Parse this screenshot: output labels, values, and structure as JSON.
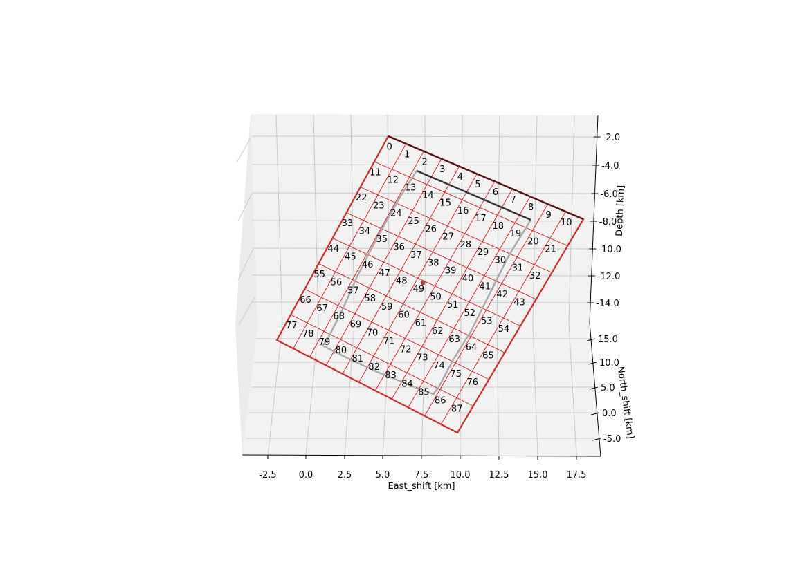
{
  "chart_data": {
    "type": "3d-fault-patch-grid",
    "axes": {
      "x": {
        "label": "East_shift [km]",
        "ticks": [
          "-2.5",
          "0.0",
          "2.5",
          "5.0",
          "7.5",
          "10.0",
          "12.5",
          "15.0",
          "17.5"
        ]
      },
      "y": {
        "label": "North_shift [km]",
        "ticks": [
          "-5.0",
          "0.0",
          "5.0",
          "10.0",
          "15.0"
        ]
      },
      "z": {
        "label": "Depth [km]",
        "ticks": [
          "-2.0",
          "-4.0",
          "-6.0",
          "-8.0",
          "-10.0",
          "-12.0",
          "-14.0"
        ]
      }
    },
    "grid": true,
    "fault": {
      "strike_patches": 11,
      "dip_patches": 8,
      "patch_labels": [
        "0",
        "1",
        "2",
        "3",
        "4",
        "5",
        "6",
        "7",
        "8",
        "9",
        "10",
        "11",
        "12",
        "13",
        "14",
        "15",
        "16",
        "17",
        "18",
        "19",
        "20",
        "21",
        "22",
        "23",
        "24",
        "25",
        "26",
        "27",
        "28",
        "29",
        "30",
        "31",
        "32",
        "33",
        "34",
        "35",
        "36",
        "37",
        "38",
        "39",
        "40",
        "41",
        "42",
        "43",
        "44",
        "45",
        "46",
        "47",
        "48",
        "49",
        "50",
        "51",
        "52",
        "53",
        "54",
        "55",
        "56",
        "57",
        "58",
        "59",
        "60",
        "61",
        "62",
        "63",
        "64",
        "65",
        "66",
        "67",
        "68",
        "69",
        "70",
        "71",
        "72",
        "73",
        "74",
        "75",
        "76",
        "77",
        "78",
        "79",
        "80",
        "81",
        "82",
        "83",
        "84",
        "85",
        "86",
        "87"
      ],
      "outline_color": "#d62728",
      "top_edge_color": "#5a1010",
      "patch_line_color": "#e01010",
      "hypocenter_color": "#a04848",
      "rupture_front_color": "#aaaaaa",
      "top_line_color": "#333333"
    }
  }
}
